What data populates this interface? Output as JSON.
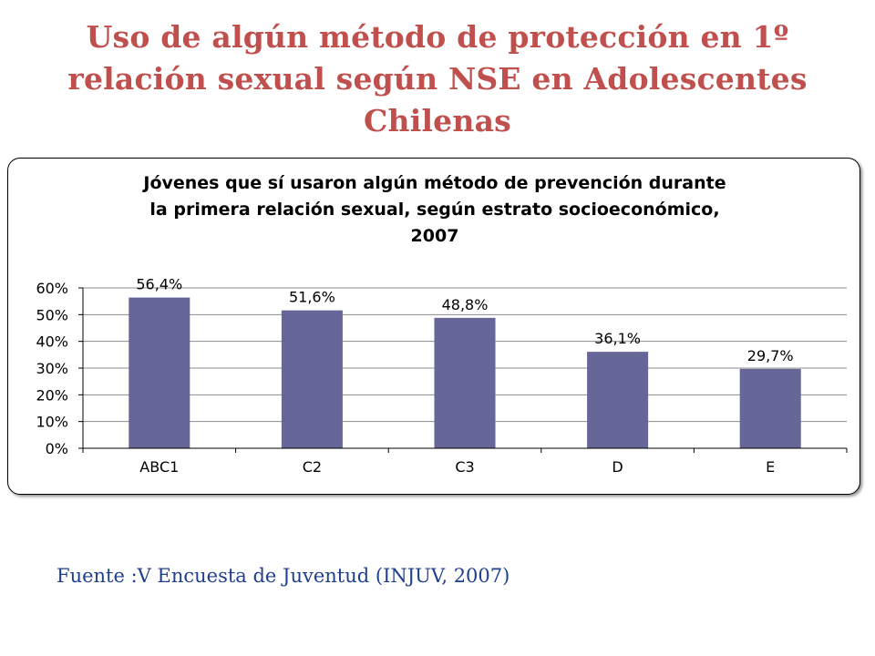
{
  "slide": {
    "title": "Uso de algún método de protección en 1º relación sexual según  NSE en Adolescentes Chilenas",
    "source": "Fuente :V Encuesta de Juventud (INJUV, 2007)"
  },
  "colors": {
    "title": "#c0504d",
    "source": "#1f3f8f",
    "bar": "#666699"
  },
  "chart_data": {
    "type": "bar",
    "title_lines": [
      "Jóvenes que sí usaron algún método de prevención durante",
      "la primera relación sexual, según estrato socioeconómico,",
      "2007"
    ],
    "categories": [
      "ABC1",
      "C2",
      "C3",
      "D",
      "E"
    ],
    "values": [
      56.4,
      51.6,
      48.8,
      36.1,
      29.7
    ],
    "data_labels": [
      "56,4%",
      "51,6%",
      "48,8%",
      "36,1%",
      "29,7%"
    ],
    "ylim": [
      0,
      60
    ],
    "yticks": [
      0,
      10,
      20,
      30,
      40,
      50,
      60
    ],
    "ytick_labels": [
      "0%",
      "10%",
      "20%",
      "30%",
      "40%",
      "50%",
      "60%"
    ],
    "grid": true,
    "legend": "none",
    "xlabel": "",
    "ylabel": ""
  }
}
